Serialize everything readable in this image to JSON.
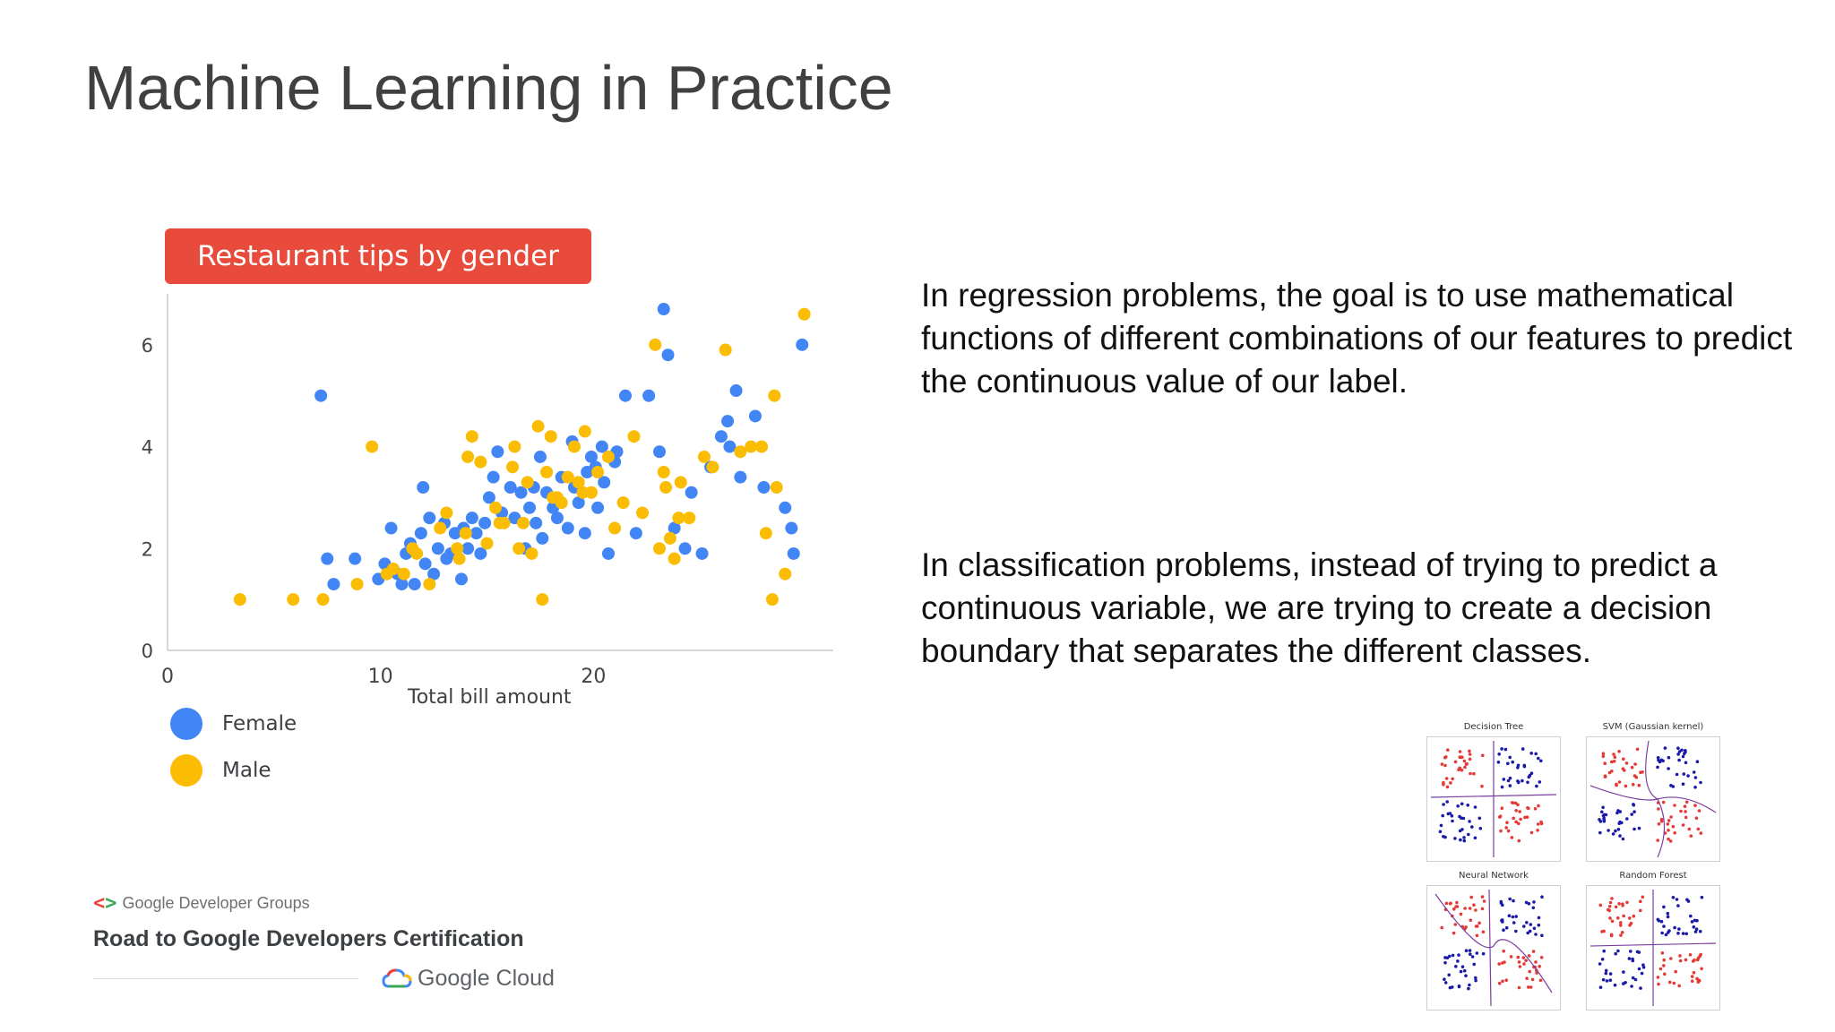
{
  "slide": {
    "title": "Machine Learning in Practice",
    "paragraphs": [
      "In regression problems, the goal is to use mathematical functions of different combinations of our features to predict the continuous value of our label.",
      "In classification problems, instead of trying to predict a continuous variable, we are trying to create a decision boundary that separates the different classes."
    ]
  },
  "chart_data": {
    "type": "scatter",
    "title": "Restaurant tips by gender",
    "xlabel": "Total bill amount",
    "ylabel": "",
    "xlim": [
      0,
      30
    ],
    "ylim": [
      0,
      7
    ],
    "xticks": [
      "0",
      "10",
      "20"
    ],
    "yticks": [
      "0",
      "2",
      "4",
      "6"
    ],
    "legend_position": "bottom-left",
    "series": [
      {
        "name": "Female",
        "color": "#4285f4",
        "points": [
          [
            7.2,
            5.0
          ],
          [
            7.5,
            1.8
          ],
          [
            7.8,
            1.3
          ],
          [
            8.8,
            1.8
          ],
          [
            9.9,
            1.4
          ],
          [
            10.2,
            1.7
          ],
          [
            10.5,
            2.4
          ],
          [
            10.8,
            1.5
          ],
          [
            11,
            1.3
          ],
          [
            11.2,
            1.9
          ],
          [
            11.4,
            2.1
          ],
          [
            11.6,
            1.3
          ],
          [
            11.9,
            2.3
          ],
          [
            12.0,
            3.2
          ],
          [
            12.1,
            1.7
          ],
          [
            12.3,
            2.6
          ],
          [
            12.5,
            1.5
          ],
          [
            12.7,
            2.0
          ],
          [
            13.0,
            2.5
          ],
          [
            13.1,
            1.8
          ],
          [
            13.3,
            1.9
          ],
          [
            13.5,
            2.3
          ],
          [
            13.8,
            1.4
          ],
          [
            13.9,
            2.4
          ],
          [
            14.1,
            2.0
          ],
          [
            14.3,
            2.6
          ],
          [
            14.5,
            2.3
          ],
          [
            14.7,
            1.9
          ],
          [
            14.9,
            2.5
          ],
          [
            15.1,
            3.0
          ],
          [
            15.3,
            3.4
          ],
          [
            15.5,
            3.9
          ],
          [
            15.7,
            2.7
          ],
          [
            16.1,
            3.2
          ],
          [
            16.3,
            2.6
          ],
          [
            16.6,
            3.1
          ],
          [
            16.8,
            2.0
          ],
          [
            17.0,
            2.8
          ],
          [
            17.2,
            3.2
          ],
          [
            17.3,
            2.5
          ],
          [
            17.5,
            3.8
          ],
          [
            17.6,
            2.2
          ],
          [
            17.8,
            3.1
          ],
          [
            18.1,
            2.8
          ],
          [
            18.3,
            2.6
          ],
          [
            18.5,
            3.4
          ],
          [
            18.8,
            2.4
          ],
          [
            19.0,
            4.1
          ],
          [
            19.1,
            3.2
          ],
          [
            19.3,
            2.9
          ],
          [
            19.6,
            2.3
          ],
          [
            19.7,
            3.5
          ],
          [
            19.9,
            3.8
          ],
          [
            20.1,
            3.6
          ],
          [
            20.2,
            2.8
          ],
          [
            20.4,
            4.0
          ],
          [
            20.5,
            3.3
          ],
          [
            20.7,
            1.9
          ],
          [
            21.0,
            3.7
          ],
          [
            21.1,
            3.9
          ],
          [
            21.5,
            5.0
          ],
          [
            22.0,
            2.3
          ],
          [
            22.6,
            5.0
          ],
          [
            23.1,
            3.9
          ],
          [
            23.3,
            6.7
          ],
          [
            23.5,
            5.8
          ],
          [
            23.8,
            2.4
          ],
          [
            24.3,
            2.0
          ],
          [
            24.6,
            3.1
          ],
          [
            25.1,
            1.9
          ],
          [
            25.5,
            3.6
          ],
          [
            26.0,
            4.2
          ],
          [
            26.3,
            4.5
          ],
          [
            26.4,
            4.0
          ],
          [
            26.7,
            5.1
          ],
          [
            26.9,
            3.4
          ],
          [
            27.6,
            4.6
          ],
          [
            28.0,
            3.2
          ],
          [
            29.0,
            2.8
          ],
          [
            29.3,
            2.4
          ],
          [
            29.4,
            1.9
          ],
          [
            29.8,
            6.0
          ]
        ]
      },
      {
        "name": "Male",
        "color": "#fbbc04",
        "points": [
          [
            3.4,
            1.0
          ],
          [
            5.9,
            1.0
          ],
          [
            7.3,
            1.0
          ],
          [
            8.9,
            1.3
          ],
          [
            9.6,
            4.0
          ],
          [
            10.3,
            1.5
          ],
          [
            10.6,
            1.6
          ],
          [
            11.1,
            1.5
          ],
          [
            11.5,
            2.0
          ],
          [
            11.7,
            1.9
          ],
          [
            12.3,
            1.3
          ],
          [
            12.8,
            2.4
          ],
          [
            13.1,
            2.7
          ],
          [
            13.6,
            2.0
          ],
          [
            13.7,
            1.8
          ],
          [
            14.0,
            2.3
          ],
          [
            14.1,
            3.8
          ],
          [
            14.3,
            4.2
          ],
          [
            14.7,
            3.7
          ],
          [
            15.0,
            2.1
          ],
          [
            15.4,
            2.8
          ],
          [
            15.6,
            2.5
          ],
          [
            15.8,
            2.5
          ],
          [
            16.2,
            3.6
          ],
          [
            16.3,
            4.0
          ],
          [
            16.5,
            2.0
          ],
          [
            16.7,
            2.5
          ],
          [
            16.9,
            3.3
          ],
          [
            17.1,
            1.9
          ],
          [
            17.4,
            4.4
          ],
          [
            17.6,
            1.0
          ],
          [
            17.8,
            3.5
          ],
          [
            18.0,
            4.2
          ],
          [
            18.1,
            3.0
          ],
          [
            18.3,
            3.0
          ],
          [
            18.5,
            2.9
          ],
          [
            18.8,
            3.4
          ],
          [
            19.1,
            4.0
          ],
          [
            19.3,
            3.3
          ],
          [
            19.5,
            3.1
          ],
          [
            19.6,
            4.3
          ],
          [
            19.9,
            3.1
          ],
          [
            20.2,
            3.5
          ],
          [
            20.7,
            3.8
          ],
          [
            21.0,
            2.4
          ],
          [
            21.4,
            2.9
          ],
          [
            21.9,
            4.2
          ],
          [
            22.3,
            2.7
          ],
          [
            22.9,
            6.0
          ],
          [
            23.1,
            2.0
          ],
          [
            23.3,
            3.5
          ],
          [
            23.4,
            3.2
          ],
          [
            23.6,
            2.2
          ],
          [
            23.8,
            1.8
          ],
          [
            24.0,
            2.6
          ],
          [
            24.1,
            3.3
          ],
          [
            24.5,
            2.6
          ],
          [
            25.2,
            3.8
          ],
          [
            25.6,
            3.6
          ],
          [
            26.2,
            5.9
          ],
          [
            26.9,
            3.9
          ],
          [
            27.4,
            4.0
          ],
          [
            27.9,
            4.0
          ],
          [
            28.1,
            2.3
          ],
          [
            28.4,
            1.0
          ],
          [
            28.5,
            5.0
          ],
          [
            28.6,
            3.2
          ],
          [
            29.0,
            1.5
          ],
          [
            29.9,
            6.6
          ]
        ]
      }
    ]
  },
  "classifier_panels": [
    "Decision Tree",
    "SVM (Gaussian kernel)",
    "Neural Network",
    "Random Forest"
  ],
  "branding": {
    "groups_label": "Google Developer Groups",
    "program_title": "Road to Google Developers Certification",
    "cloud_label": "Google Cloud"
  }
}
